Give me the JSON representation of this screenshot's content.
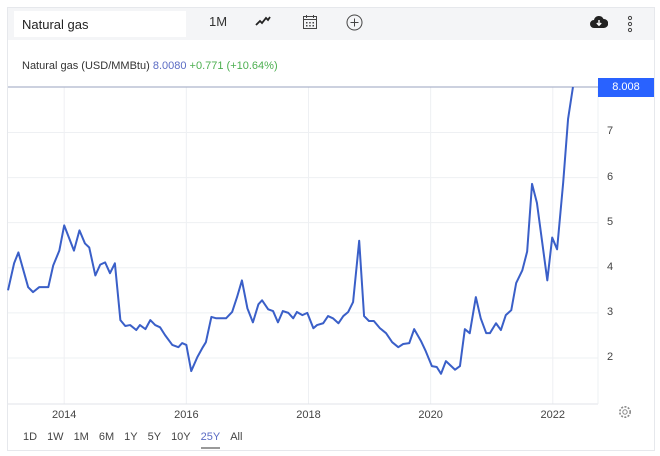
{
  "toolbar": {
    "search_value": "Natural gas",
    "interval": "1M",
    "icons": [
      "line-chart-icon",
      "calendar-icon",
      "add-circle-icon",
      "cloud-download-icon",
      "more-vertical-icon"
    ]
  },
  "legend": {
    "name": "Natural gas (USD/MMBtu)",
    "value": "8.0080",
    "change": "+0.771 (+10.64%)"
  },
  "last_price_badge": "8.008",
  "ranges": [
    "1D",
    "1W",
    "1M",
    "6M",
    "1Y",
    "5Y",
    "10Y",
    "25Y",
    "All"
  ],
  "active_range": "25Y",
  "colors": {
    "line": "#3a5fc8",
    "accent": "#2962ff",
    "positive": "#4caf50"
  },
  "chart_data": {
    "type": "line",
    "xlim": [
      2013.08,
      2022.74
    ],
    "ylim": [
      0.98,
      8.008
    ],
    "grid": true,
    "x_ticks": [
      "2014",
      "2016",
      "2018",
      "2020",
      "2022"
    ],
    "y_ticks": [
      "2",
      "3",
      "4",
      "5",
      "6",
      "7"
    ],
    "series": [
      {
        "points": [
          [
            2013.08,
            3.5
          ],
          [
            2013.18,
            4.1
          ],
          [
            2013.25,
            4.34
          ],
          [
            2013.41,
            3.57
          ],
          [
            2013.49,
            3.46
          ],
          [
            2013.59,
            3.57
          ],
          [
            2013.74,
            3.57
          ],
          [
            2013.82,
            4.05
          ],
          [
            2013.92,
            4.38
          ],
          [
            2014.0,
            4.94
          ],
          [
            2014.16,
            4.38
          ],
          [
            2014.25,
            4.83
          ],
          [
            2014.34,
            4.54
          ],
          [
            2014.41,
            4.45
          ],
          [
            2014.51,
            3.83
          ],
          [
            2014.59,
            4.07
          ],
          [
            2014.67,
            4.12
          ],
          [
            2014.75,
            3.88
          ],
          [
            2014.83,
            4.1
          ],
          [
            2014.92,
            2.84
          ],
          [
            2015.0,
            2.71
          ],
          [
            2015.08,
            2.73
          ],
          [
            2015.18,
            2.62
          ],
          [
            2015.24,
            2.73
          ],
          [
            2015.33,
            2.64
          ],
          [
            2015.41,
            2.84
          ],
          [
            2015.49,
            2.73
          ],
          [
            2015.57,
            2.68
          ],
          [
            2015.65,
            2.51
          ],
          [
            2015.77,
            2.29
          ],
          [
            2015.87,
            2.24
          ],
          [
            2015.93,
            2.33
          ],
          [
            2016.0,
            2.29
          ],
          [
            2016.08,
            1.71
          ],
          [
            2016.18,
            2.02
          ],
          [
            2016.27,
            2.24
          ],
          [
            2016.32,
            2.35
          ],
          [
            2016.41,
            2.91
          ],
          [
            2016.49,
            2.88
          ],
          [
            2016.65,
            2.88
          ],
          [
            2016.75,
            3.02
          ],
          [
            2016.83,
            3.35
          ],
          [
            2016.91,
            3.72
          ],
          [
            2017.0,
            3.1
          ],
          [
            2017.09,
            2.79
          ],
          [
            2017.18,
            3.19
          ],
          [
            2017.24,
            3.28
          ],
          [
            2017.34,
            3.08
          ],
          [
            2017.42,
            3.04
          ],
          [
            2017.5,
            2.79
          ],
          [
            2017.58,
            3.04
          ],
          [
            2017.67,
            3.0
          ],
          [
            2017.75,
            2.88
          ],
          [
            2017.81,
            3.02
          ],
          [
            2017.9,
            2.95
          ],
          [
            2017.98,
            3.0
          ],
          [
            2018.08,
            2.66
          ],
          [
            2018.14,
            2.73
          ],
          [
            2018.24,
            2.77
          ],
          [
            2018.32,
            2.93
          ],
          [
            2018.4,
            2.88
          ],
          [
            2018.49,
            2.77
          ],
          [
            2018.57,
            2.93
          ],
          [
            2018.65,
            3.02
          ],
          [
            2018.73,
            3.24
          ],
          [
            2018.83,
            4.6
          ],
          [
            2018.91,
            2.93
          ],
          [
            2018.99,
            2.82
          ],
          [
            2019.07,
            2.82
          ],
          [
            2019.17,
            2.66
          ],
          [
            2019.27,
            2.55
          ],
          [
            2019.37,
            2.35
          ],
          [
            2019.47,
            2.24
          ],
          [
            2019.55,
            2.31
          ],
          [
            2019.65,
            2.33
          ],
          [
            2019.73,
            2.64
          ],
          [
            2019.84,
            2.38
          ],
          [
            2019.92,
            2.15
          ],
          [
            2020.02,
            1.82
          ],
          [
            2020.1,
            1.8
          ],
          [
            2020.17,
            1.65
          ],
          [
            2020.25,
            1.93
          ],
          [
            2020.4,
            1.74
          ],
          [
            2020.48,
            1.82
          ],
          [
            2020.56,
            2.64
          ],
          [
            2020.64,
            2.55
          ],
          [
            2020.74,
            3.35
          ],
          [
            2020.82,
            2.88
          ],
          [
            2020.91,
            2.55
          ],
          [
            2020.97,
            2.55
          ],
          [
            2021.07,
            2.77
          ],
          [
            2021.15,
            2.62
          ],
          [
            2021.23,
            2.95
          ],
          [
            2021.32,
            3.06
          ],
          [
            2021.4,
            3.66
          ],
          [
            2021.5,
            3.94
          ],
          [
            2021.58,
            4.36
          ],
          [
            2021.66,
            5.86
          ],
          [
            2021.74,
            5.44
          ],
          [
            2021.91,
            3.72
          ],
          [
            2021.99,
            4.67
          ],
          [
            2022.07,
            4.41
          ],
          [
            2022.17,
            5.89
          ],
          [
            2022.25,
            7.3
          ],
          [
            2022.33,
            8.008
          ]
        ]
      }
    ]
  }
}
